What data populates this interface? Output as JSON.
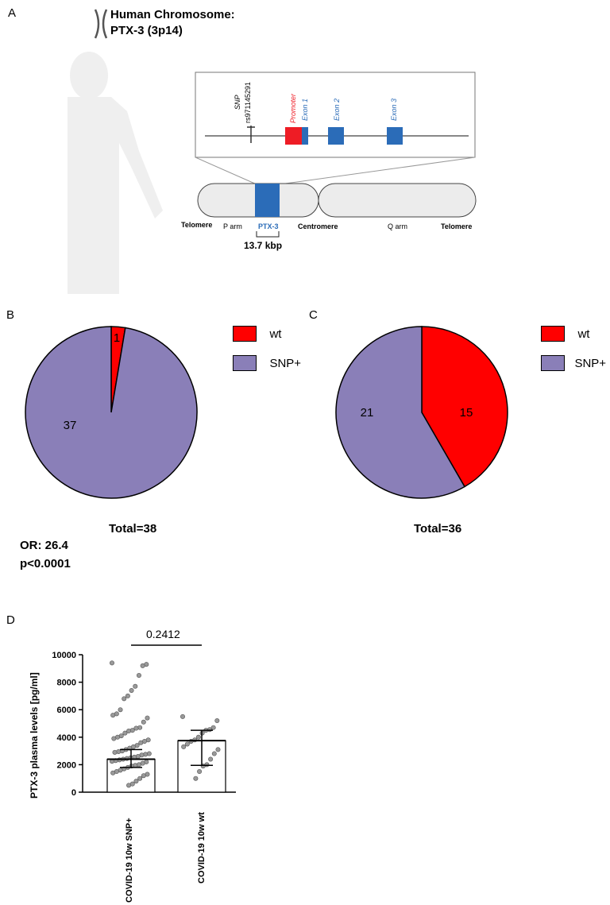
{
  "panels": {
    "a": "A",
    "b": "B",
    "c": "C",
    "d": "D"
  },
  "panel_a": {
    "title_line1": "Human Chromosome:",
    "title_line2": "PTX-3 (3p14)",
    "snp_label": "SNP",
    "snp_id": "rs971145291",
    "promoter_label": "Promoter",
    "exon1_label": "Exon 1",
    "exon2_label": "Exon 2",
    "exon3_label": "Exon 3",
    "telomere_left": "Telomere",
    "p_arm": "P arm",
    "gene_label": "PTX-3",
    "centromere": "Centromere",
    "q_arm": "Q arm",
    "telomere_right": "Telomere",
    "size_label": "13.7 kbp",
    "colors": {
      "promoter": "#ee1c25",
      "exon": "#2b6cb8",
      "chromosome": "#ececec",
      "human": "#eeeeee"
    }
  },
  "chart_data": [
    {
      "type": "pie",
      "panel": "B",
      "slices": [
        {
          "label": "wt",
          "value": 1,
          "color": "#ff0000"
        },
        {
          "label": "SNP+",
          "value": 37,
          "color": "#8a7fb8"
        }
      ],
      "legend": [
        "wt",
        "SNP+"
      ],
      "legend_position": "right",
      "total_label": "Total=38"
    },
    {
      "type": "pie",
      "panel": "C",
      "slices": [
        {
          "label": "wt",
          "value": 15,
          "color": "#ff0000"
        },
        {
          "label": "SNP+",
          "value": 21,
          "color": "#8a7fb8"
        }
      ],
      "legend": [
        "wt",
        "SNP+"
      ],
      "legend_position": "right",
      "total_label": "Total=36"
    },
    {
      "type": "bar",
      "panel": "D",
      "categories": [
        "COVID-19 10w SNP+",
        "COVID-19 10w wt"
      ],
      "values": [
        2400,
        3750
      ],
      "error": [
        [
          1800,
          3100
        ],
        [
          1950,
          4500
        ]
      ],
      "ylabel": "PTX-3 plasma levels [pg/ml]",
      "ylim": [
        0,
        10000
      ],
      "yticks": [
        "0",
        "2000",
        "4000",
        "6000",
        "8000",
        "10000"
      ],
      "p_value": "0.2412",
      "points": [
        [
          9400,
          9300,
          9200,
          8500,
          7700,
          7400,
          7000,
          6800,
          6000,
          5700,
          5600,
          5400,
          5100,
          4700,
          4650,
          4500,
          4450,
          4300,
          4100,
          4000,
          3900,
          3800,
          3700,
          3600,
          3400,
          3300,
          3200,
          3100,
          3000,
          2950,
          2900,
          2800,
          2750,
          2700,
          2600,
          2550,
          2500,
          2450,
          2400,
          2350,
          2300,
          2250,
          2200,
          2100,
          2000,
          1950,
          1900,
          1800,
          1700,
          1600,
          1500,
          1400,
          1300,
          1200,
          1000,
          800,
          600,
          500
        ],
        [
          5500,
          5200,
          4700,
          4550,
          4500,
          4300,
          4000,
          3800,
          3700,
          3500,
          3300,
          3100,
          2800,
          2400,
          2000,
          1900,
          1500,
          1000
        ]
      ]
    }
  ],
  "stats": {
    "or": "OR: 26.4",
    "p": "p<0.0001"
  }
}
